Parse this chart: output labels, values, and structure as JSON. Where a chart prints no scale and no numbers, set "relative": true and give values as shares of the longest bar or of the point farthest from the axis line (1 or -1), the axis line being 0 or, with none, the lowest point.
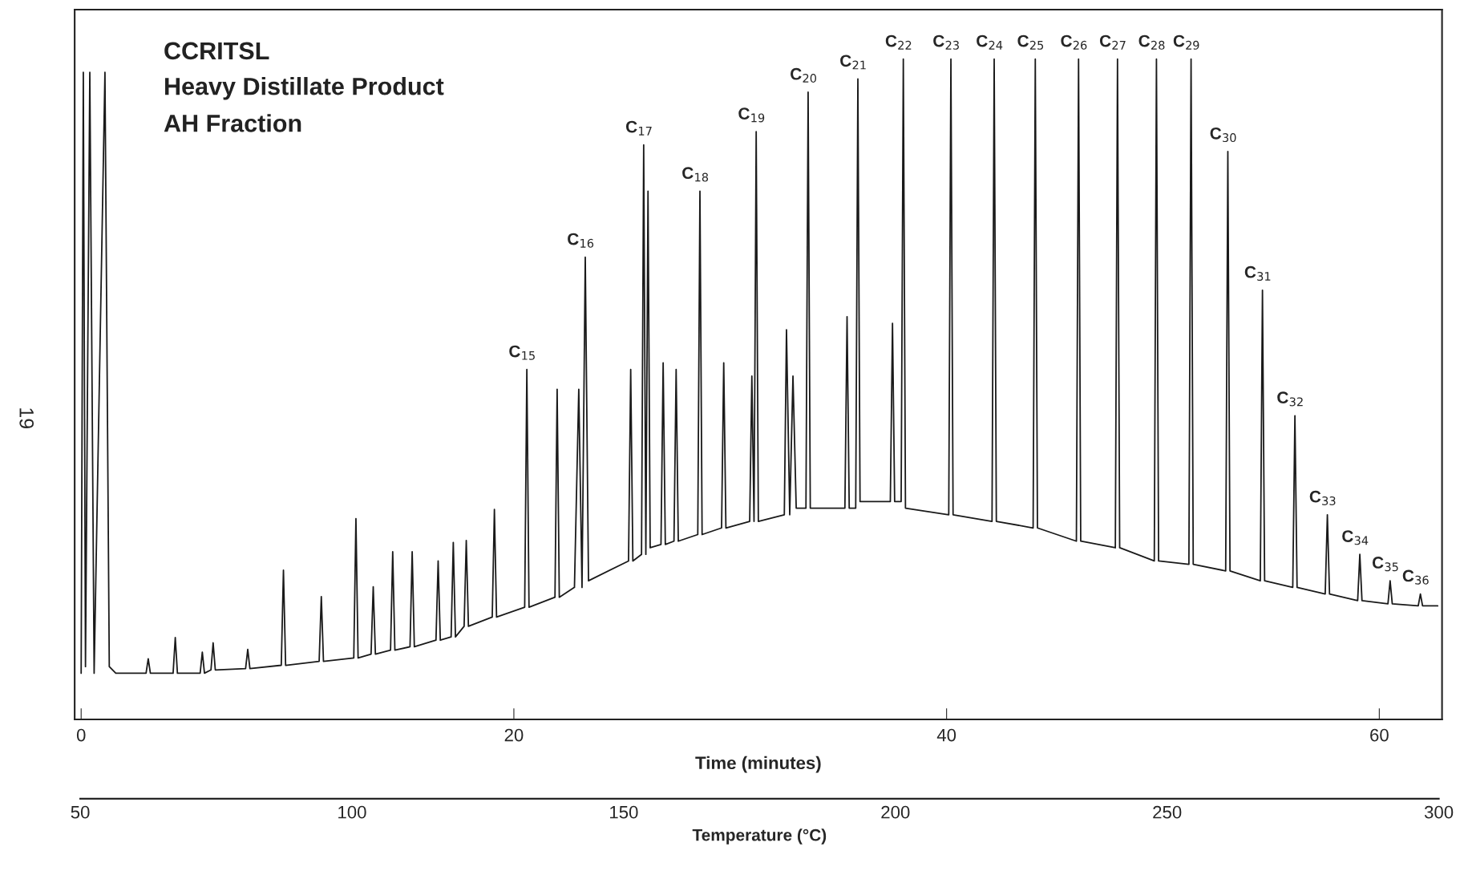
{
  "chart_data": {
    "type": "line",
    "relative": true,
    "title": "CCRITSL",
    "subtitle": "Heavy Distillate Product\nAH Fraction",
    "xlabel": "Time (minutes)",
    "x2label": "Temperature (°C)",
    "xlim": [
      -0.3,
      62.9
    ],
    "xticks": [
      0,
      20,
      40,
      60
    ],
    "x2lim": [
      50,
      300
    ],
    "x2ticks": [
      50,
      100,
      150,
      200,
      250,
      300
    ],
    "grid": false,
    "legend": false,
    "marker": "none",
    "line_style": "solid",
    "tick_labels": "x",
    "series": [
      {
        "color": "#1a1a1a",
        "x": [
          0.0,
          0.1,
          0.2,
          0.4,
          0.6,
          1.1,
          1.3,
          1.6,
          3.0,
          3.1,
          3.2,
          4.25,
          4.35,
          4.45,
          5.5,
          5.6,
          5.7,
          6.0,
          6.1,
          6.2,
          7.6,
          7.7,
          7.8,
          9.25,
          9.35,
          9.45,
          11.0,
          11.1,
          11.2,
          12.6,
          12.7,
          12.8,
          13.4,
          13.5,
          13.6,
          14.3,
          14.4,
          14.5,
          15.2,
          15.3,
          15.4,
          16.4,
          16.5,
          16.6,
          17.1,
          17.2,
          17.3,
          17.7,
          17.8,
          17.9,
          19.0,
          19.1,
          19.2,
          20.5,
          20.6,
          20.7,
          21.9,
          22.0,
          22.1,
          22.8,
          23.0,
          23.15,
          23.3,
          23.45,
          25.3,
          25.4,
          25.5,
          25.9,
          26.0,
          26.1,
          26.2,
          26.3,
          26.8,
          26.9,
          27.0,
          27.4,
          27.5,
          27.6,
          28.5,
          28.6,
          28.7,
          29.6,
          29.7,
          29.8,
          30.9,
          31.0,
          31.1,
          31.2,
          31.3,
          32.5,
          32.6,
          32.75,
          32.9,
          33.05,
          33.5,
          33.6,
          33.7,
          35.3,
          35.4,
          35.5,
          35.8,
          35.9,
          36.0,
          37.4,
          37.5,
          37.6,
          37.9,
          38.0,
          38.1,
          40.1,
          40.2,
          40.3,
          42.1,
          42.2,
          42.3,
          44.0,
          44.1,
          44.2,
          46.0,
          46.1,
          46.2,
          47.8,
          47.9,
          48.0,
          49.6,
          49.7,
          49.8,
          51.2,
          51.3,
          51.4,
          52.9,
          53.0,
          53.1,
          54.5,
          54.6,
          54.7,
          56.0,
          56.1,
          56.2,
          57.5,
          57.6,
          57.7,
          59.0,
          59.1,
          59.2,
          60.4,
          60.5,
          60.6,
          61.8,
          61.9,
          62.0,
          62.7
        ],
        "values": [
          0.07,
          0.98,
          0.08,
          0.98,
          0.07,
          0.98,
          0.08,
          0.07,
          0.07,
          0.092,
          0.07,
          0.07,
          0.124,
          0.07,
          0.07,
          0.102,
          0.07,
          0.075,
          0.116,
          0.075,
          0.077,
          0.106,
          0.077,
          0.082,
          0.226,
          0.082,
          0.088,
          0.186,
          0.088,
          0.093,
          0.304,
          0.093,
          0.099,
          0.201,
          0.099,
          0.105,
          0.254,
          0.105,
          0.11,
          0.254,
          0.11,
          0.12,
          0.24,
          0.12,
          0.125,
          0.268,
          0.125,
          0.141,
          0.271,
          0.141,
          0.155,
          0.318,
          0.155,
          0.17,
          0.53,
          0.17,
          0.185,
          0.5,
          0.185,
          0.2,
          0.5,
          0.2,
          0.7,
          0.21,
          0.24,
          0.53,
          0.24,
          0.25,
          0.87,
          0.25,
          0.8,
          0.26,
          0.265,
          0.54,
          0.265,
          0.27,
          0.53,
          0.27,
          0.28,
          0.8,
          0.28,
          0.29,
          0.54,
          0.29,
          0.3,
          0.52,
          0.3,
          0.89,
          0.3,
          0.31,
          0.59,
          0.31,
          0.52,
          0.32,
          0.32,
          0.95,
          0.32,
          0.32,
          0.61,
          0.32,
          0.32,
          0.97,
          0.33,
          0.33,
          0.6,
          0.33,
          0.33,
          1.0,
          0.32,
          0.31,
          1.0,
          0.31,
          0.3,
          1.0,
          0.3,
          0.29,
          1.0,
          0.29,
          0.27,
          1.0,
          0.27,
          0.26,
          1.0,
          0.26,
          0.24,
          1.0,
          0.24,
          0.235,
          1.0,
          0.235,
          0.225,
          0.86,
          0.225,
          0.21,
          0.65,
          0.21,
          0.2,
          0.46,
          0.2,
          0.19,
          0.31,
          0.19,
          0.18,
          0.25,
          0.18,
          0.175,
          0.21,
          0.175,
          0.172,
          0.19,
          0.172,
          0.172
        ]
      }
    ],
    "annotations": [
      {
        "text": "C$_{15}$",
        "x": 20.6,
        "y": 0.53
      },
      {
        "text": "C$_{16}$",
        "x": 23.3,
        "y": 0.7
      },
      {
        "text": "C$_{17}$",
        "x": 26.0,
        "y": 0.87
      },
      {
        "text": "C$_{18}$",
        "x": 28.6,
        "y": 0.8
      },
      {
        "text": "C$_{19}$",
        "x": 31.2,
        "y": 0.89
      },
      {
        "text": "C$_{20}$",
        "x": 33.6,
        "y": 0.95
      },
      {
        "text": "C$_{21}$",
        "x": 35.9,
        "y": 0.97
      },
      {
        "text": "C$_{22}$",
        "x": 38.0,
        "y": 1.0
      },
      {
        "text": "C$_{23}$",
        "x": 40.2,
        "y": 1.0
      },
      {
        "text": "C$_{24}$",
        "x": 42.2,
        "y": 1.0
      },
      {
        "text": "C$_{25}$",
        "x": 44.1,
        "y": 1.0
      },
      {
        "text": "C$_{26}$",
        "x": 46.1,
        "y": 1.0
      },
      {
        "text": "C$_{27}$",
        "x": 47.9,
        "y": 1.0
      },
      {
        "text": "C$_{28}$",
        "x": 49.7,
        "y": 1.0
      },
      {
        "text": "C$_{29}$",
        "x": 51.3,
        "y": 1.0
      },
      {
        "text": "C$_{30}$",
        "x": 53.0,
        "y": 0.86
      },
      {
        "text": "C$_{31}$",
        "x": 54.6,
        "y": 0.65
      },
      {
        "text": "C$_{32}$",
        "x": 56.1,
        "y": 0.46
      },
      {
        "text": "C$_{33}$",
        "x": 57.6,
        "y": 0.31
      },
      {
        "text": "C$_{34}$",
        "x": 59.1,
        "y": 0.25
      },
      {
        "text": "C$_{35}$",
        "x": 60.5,
        "y": 0.21
      },
      {
        "text": "C$_{36}$",
        "x": 61.9,
        "y": 0.19
      },
      "19"
    ]
  }
}
